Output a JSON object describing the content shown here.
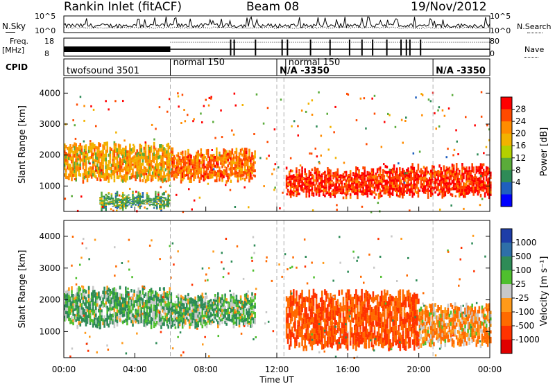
{
  "header": {
    "title": "Rankin Inlet (fitACF)",
    "beam": "Beam 08",
    "date": "19/Nov/2012"
  },
  "summary_panel": {
    "nsky_label": "N.Sky",
    "nsky_ticks": [
      "10^5",
      "10^0"
    ],
    "freq_label": "Freq.",
    "freq_unit": "[MHz]",
    "freq_ticks": [
      "18",
      "8"
    ],
    "cpid_label": "CPID",
    "nsearch_label": "N.Search",
    "nsearch_ticks": [
      "10^5",
      "10^0"
    ],
    "nave_label": "Nave",
    "nave_ticks": [
      "80",
      "0"
    ],
    "cpid_segments": [
      {
        "label": "twofsound 3501",
        "start_hour": 0.0,
        "end_hour": 6.0
      },
      {
        "label": "normal 150",
        "start_hour": 6.0,
        "end_hour": 12.0
      },
      {
        "label": "N/A -3350",
        "start_hour": 12.0,
        "end_hour": 12.5
      },
      {
        "label": "normal 150",
        "start_hour": 12.5,
        "end_hour": 20.8
      },
      {
        "label": "N/A -3350",
        "start_hour": 20.8,
        "end_hour": 24.0
      }
    ]
  },
  "colorbars": {
    "power": {
      "label": "Power [dB]",
      "ticks": [
        "28",
        "24",
        "20",
        "16",
        "12",
        "8",
        "4"
      ],
      "colors": [
        "#ff0000",
        "#ff4a00",
        "#ff8c00",
        "#f2b200",
        "#b3d000",
        "#5aab3a",
        "#2e8b57",
        "#1f5fbf",
        "#0000ff"
      ]
    },
    "velocity": {
      "label": "Velocity [m s⁻¹]",
      "ticks": [
        "1000",
        "500",
        "100",
        "25",
        "-25",
        "-100",
        "-500",
        "-1000"
      ],
      "colors": [
        "#1e3ea8",
        "#2e6fa8",
        "#2e8b57",
        "#4fbf2e",
        "#c8c8c8",
        "#ff9a1a",
        "#ff6a00",
        "#ff3300",
        "#e00000"
      ]
    }
  },
  "chart_data": [
    {
      "type": "heatmap",
      "name": "Power",
      "xlabel": "",
      "ylabel": "Slant Range [km]",
      "xlim": [
        0,
        24
      ],
      "ylim": [
        180,
        4500
      ],
      "yticks": [
        "4000",
        "3000",
        "2000",
        "1000"
      ],
      "colorbar": "Power [dB]",
      "regions": [
        {
          "t0": 0.0,
          "t1": 6.0,
          "r0": 1200,
          "r1": 2300,
          "value": 20
        },
        {
          "t0": 2.0,
          "t1": 6.0,
          "r0": 300,
          "r1": 700,
          "value": 12
        },
        {
          "t0": 6.0,
          "t1": 10.8,
          "r0": 1200,
          "r1": 2100,
          "value": 24
        },
        {
          "t0": 12.5,
          "t1": 18.0,
          "r0": 700,
          "r1": 1500,
          "value": 28
        },
        {
          "t0": 18.0,
          "t1": 24.0,
          "r0": 700,
          "r1": 1600,
          "value": 28
        }
      ]
    },
    {
      "type": "heatmap",
      "name": "Velocity",
      "xlabel": "Time UT",
      "ylabel": "Slant Range [km]",
      "xlim": [
        0,
        24
      ],
      "ylim": [
        180,
        4500
      ],
      "yticks": [
        "4000",
        "3000",
        "2000",
        "1000"
      ],
      "xticks": [
        "00:00",
        "04:00",
        "08:00",
        "12:00",
        "16:00",
        "20:00",
        "00:00"
      ],
      "colorbar": "Velocity [m s⁻¹]",
      "regions": [
        {
          "t0": 0.0,
          "t1": 6.0,
          "r0": 1200,
          "r1": 2300,
          "value": 100
        },
        {
          "t0": 6.0,
          "t1": 10.8,
          "r0": 1200,
          "r1": 2100,
          "value": 100
        },
        {
          "t0": 12.5,
          "t1": 20.0,
          "r0": 500,
          "r1": 2200,
          "value": -500
        },
        {
          "t0": 20.0,
          "t1": 24.0,
          "r0": 600,
          "r1": 1800,
          "value": -100
        }
      ]
    }
  ]
}
